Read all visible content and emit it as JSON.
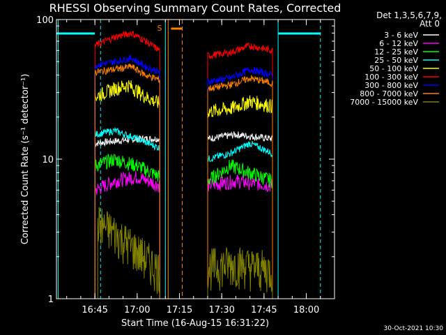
{
  "chart_data": {
    "type": "line",
    "title": "RHESSI Observing Summary Count Rates, Corrected",
    "xlabel": "Start Time (16-Aug-15 16:31:22)",
    "ylabel": "Corrected Count Rate (s⁻¹ detector⁻¹)",
    "yscale": "log",
    "ylim": [
      1,
      100
    ],
    "xlim": [
      "16:31:22",
      "18:10:00"
    ],
    "x_ticks": [
      "16:45",
      "17:00",
      "17:15",
      "17:30",
      "17:45",
      "18:00"
    ],
    "y_ticks": [
      "1",
      "10",
      "100"
    ],
    "legend_title": "Det 1,3,5,6,7,9,",
    "legend_subtitle": "Att 0",
    "legend_position": "top-right outside",
    "timestamp": "30-Oct-2021 10:30",
    "flag_label": "S",
    "series": [
      {
        "name": "3 - 6 keV",
        "color": "#ffffff",
        "segments": [
          [
            [
              "16:45",
              13
            ],
            [
              "17:00",
              14
            ],
            [
              "17:08",
              14
            ]
          ],
          [
            [
              "17:25",
              14
            ],
            [
              "17:35",
              15
            ],
            [
              "17:48",
              14
            ]
          ]
        ]
      },
      {
        "name": "6 - 12 keV",
        "color": "#ff00ff",
        "segments": [
          [
            [
              "16:45",
              6
            ],
            [
              "16:52",
              7
            ],
            [
              "17:00",
              7.5
            ],
            [
              "17:08",
              6.5
            ]
          ],
          [
            [
              "17:25",
              6.5
            ],
            [
              "17:35",
              7
            ],
            [
              "17:48",
              6.5
            ]
          ]
        ]
      },
      {
        "name": "12 - 25 keV",
        "color": "#00ff00",
        "segments": [
          [
            [
              "16:45",
              9
            ],
            [
              "16:52",
              10
            ],
            [
              "17:00",
              9
            ],
            [
              "17:08",
              7.5
            ]
          ],
          [
            [
              "17:25",
              7
            ],
            [
              "17:33",
              9
            ],
            [
              "17:48",
              7
            ]
          ]
        ]
      },
      {
        "name": "25 - 50 keV",
        "color": "#00ffff",
        "segments": [
          [
            [
              "16:45",
              15
            ],
            [
              "16:52",
              16
            ],
            [
              "17:00",
              14
            ],
            [
              "17:08",
              12
            ]
          ],
          [
            [
              "17:25",
              10
            ],
            [
              "17:33",
              11
            ],
            [
              "17:40",
              13
            ],
            [
              "17:48",
              11
            ]
          ]
        ]
      },
      {
        "name": "50 - 100 keV",
        "color": "#ffff00",
        "segments": [
          [
            [
              "16:45",
              28
            ],
            [
              "16:52",
              32
            ],
            [
              "16:57",
              34
            ],
            [
              "17:03",
              28
            ],
            [
              "17:08",
              25
            ]
          ],
          [
            [
              "17:25",
              22
            ],
            [
              "17:33",
              23
            ],
            [
              "17:40",
              26
            ],
            [
              "17:48",
              24
            ]
          ]
        ]
      },
      {
        "name": "100 - 300 keV",
        "color": "#ff0000",
        "segments": [
          [
            [
              "16:45",
              65
            ],
            [
              "16:52",
              75
            ],
            [
              "16:58",
              80
            ],
            [
              "17:03",
              70
            ],
            [
              "17:08",
              60
            ]
          ],
          [
            [
              "17:25",
              55
            ],
            [
              "17:33",
              58
            ],
            [
              "17:40",
              65
            ],
            [
              "17:48",
              60
            ]
          ]
        ]
      },
      {
        "name": "300 - 800 keV",
        "color": "#0000ff",
        "segments": [
          [
            [
              "16:45",
              47
            ],
            [
              "16:52",
              50
            ],
            [
              "16:58",
              53
            ],
            [
              "17:03",
              46
            ],
            [
              "17:08",
              42
            ]
          ],
          [
            [
              "17:25",
              36
            ],
            [
              "17:33",
              38
            ],
            [
              "17:40",
              44
            ],
            [
              "17:48",
              40
            ]
          ]
        ]
      },
      {
        "name": "800 - 7000 keV",
        "color": "#ff8000",
        "segments": [
          [
            [
              "16:45",
              42
            ],
            [
              "16:52",
              44
            ],
            [
              "16:58",
              46
            ],
            [
              "17:03",
              40
            ],
            [
              "17:08",
              37
            ]
          ],
          [
            [
              "17:25",
              32
            ],
            [
              "17:33",
              34
            ],
            [
              "17:40",
              38
            ],
            [
              "17:48",
              35
            ]
          ]
        ]
      },
      {
        "name": "7000 - 15000 keV",
        "color": "#808000",
        "segments": [
          [
            [
              "16:46",
              3.5
            ],
            [
              "16:52",
              3
            ],
            [
              "17:00",
              2.2
            ],
            [
              "17:08",
              1.6
            ]
          ],
          [
            [
              "17:25",
              1.7
            ],
            [
              "17:35",
              1.8
            ],
            [
              "17:48",
              1.6
            ]
          ]
        ]
      }
    ],
    "annotations": {
      "cyan_vertical_solid": [
        "16:32",
        "17:10",
        "17:50"
      ],
      "cyan_vertical_dashed": [
        "16:47",
        "18:05"
      ],
      "orange_vertical_solid": [
        "17:11"
      ],
      "orange_vertical_dashed": [
        "17:16"
      ],
      "cyan_flag_bars": [
        [
          "16:31",
          "16:45"
        ],
        [
          "17:50",
          "18:05"
        ]
      ],
      "orange_flag_bar": [
        "17:12",
        "17:16"
      ]
    },
    "colors": {
      "background": "#000000",
      "axes": "#ffffff",
      "cyan": "#00ffff",
      "orange": "#ff8000"
    }
  }
}
